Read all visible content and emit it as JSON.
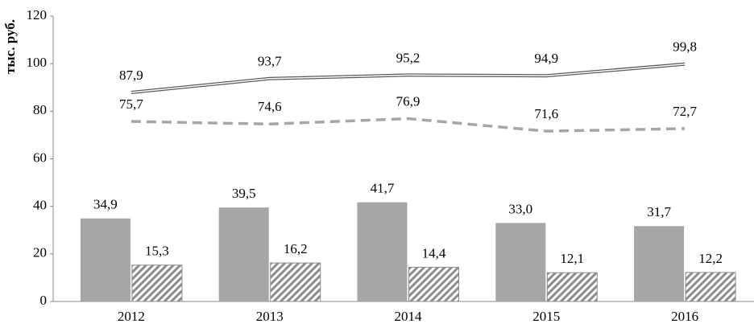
{
  "chart_data": {
    "type": "combo",
    "y_label": "тыс. руб.",
    "categories": [
      "2012",
      "2013",
      "2014",
      "2015",
      "2016"
    ],
    "series": [
      {
        "type": "bar",
        "style": "solid",
        "color": "#a6a6a6",
        "values": [
          34.9,
          39.5,
          41.7,
          33.0,
          31.7
        ],
        "value_labels": [
          "34,9",
          "39,5",
          "41,7",
          "33,0",
          "31,7"
        ]
      },
      {
        "type": "bar",
        "style": "hatch",
        "color": "#8c8c8c",
        "values": [
          15.3,
          16.2,
          14.4,
          12.1,
          12.2
        ],
        "value_labels": [
          "15,3",
          "16,2",
          "14,4",
          "12,1",
          "12,2"
        ]
      },
      {
        "type": "line",
        "style": "double",
        "color": "#595959",
        "values": [
          87.9,
          93.7,
          95.2,
          94.9,
          99.8
        ],
        "value_labels": [
          "87,9",
          "93,7",
          "95,2",
          "94,9",
          "99,8"
        ]
      },
      {
        "type": "line",
        "style": "dashed",
        "color": "#a6a6a6",
        "values": [
          75.7,
          74.6,
          76.9,
          71.6,
          72.7
        ],
        "value_labels": [
          "75,7",
          "74,6",
          "76,9",
          "71,6",
          "72,7"
        ]
      }
    ],
    "ylim": [
      0,
      120
    ],
    "yticks": [
      0,
      20,
      40,
      60,
      80,
      100,
      120
    ],
    "grid": false
  }
}
